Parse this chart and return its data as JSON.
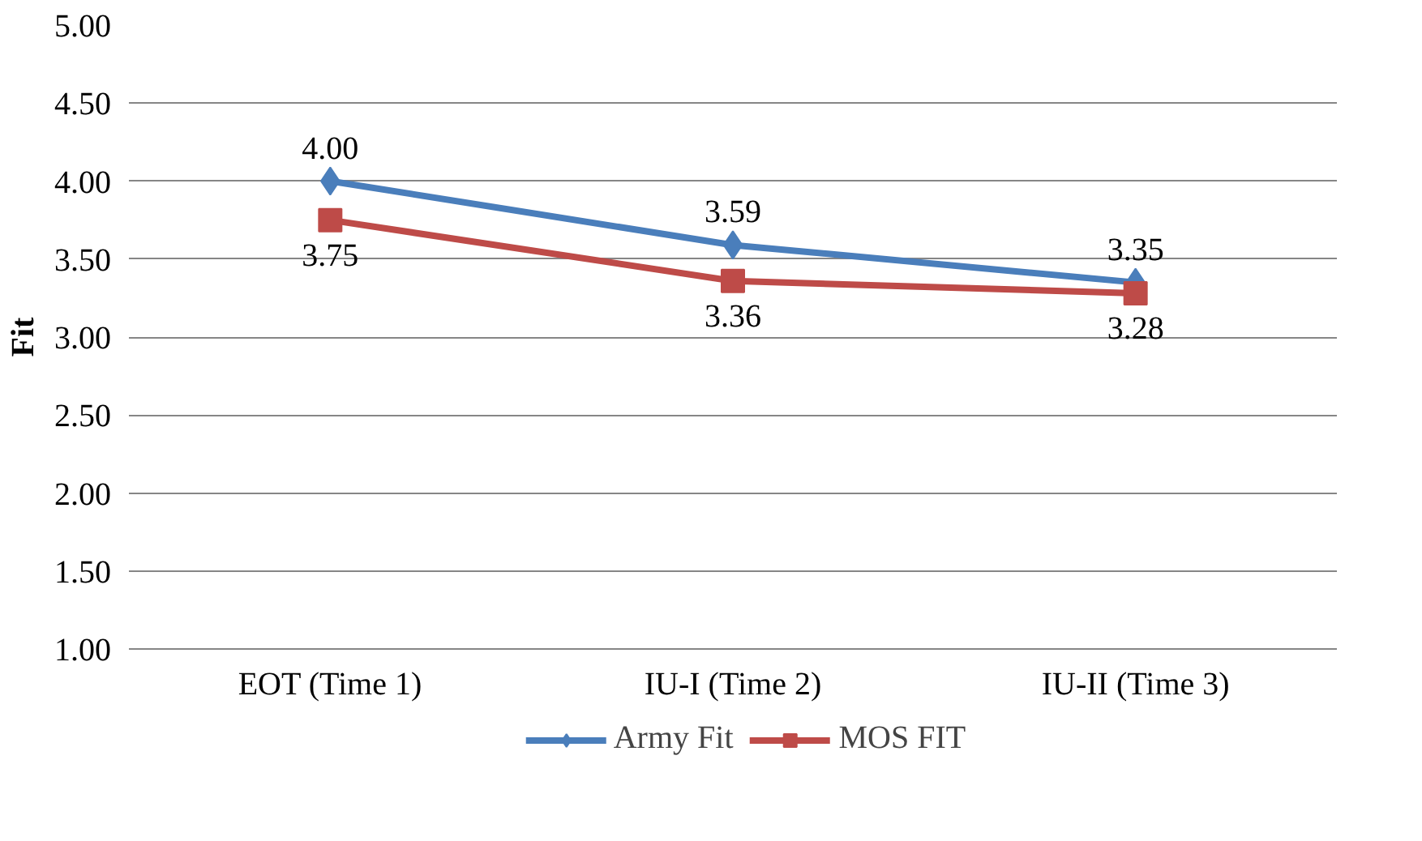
{
  "chart_data": {
    "type": "line",
    "ylabel": "Fit",
    "categories": [
      "EOT (Time 1)",
      "IU-I (Time 2)",
      "IU-II (Time 3)"
    ],
    "series": [
      {
        "name": "Army Fit",
        "color": "#4a7ebb",
        "marker": "diamond",
        "values": [
          4.0,
          3.59,
          3.35
        ],
        "value_labels": [
          "4.00",
          "3.59",
          "3.35"
        ]
      },
      {
        "name": "MOS FIT",
        "color": "#be4b48",
        "marker": "square",
        "values": [
          3.75,
          3.36,
          3.28
        ],
        "value_labels": [
          "3.75",
          "3.36",
          "3.28"
        ]
      }
    ],
    "ylim": [
      1.0,
      5.0
    ],
    "yticks": [
      {
        "value": 1,
        "label": "1.00"
      },
      {
        "value": 1.5,
        "label": "1.50"
      },
      {
        "value": 2,
        "label": "2.00"
      },
      {
        "value": 2.5,
        "label": "2.50"
      },
      {
        "value": 3,
        "label": "3.00"
      },
      {
        "value": 3.5,
        "label": "3.50"
      },
      {
        "value": 4,
        "label": "4.00"
      },
      {
        "value": 4.5,
        "label": "4.50"
      },
      {
        "value": 5,
        "label": "5.00"
      }
    ],
    "grid": "y",
    "legend": "bottom",
    "line_style": "solid"
  }
}
